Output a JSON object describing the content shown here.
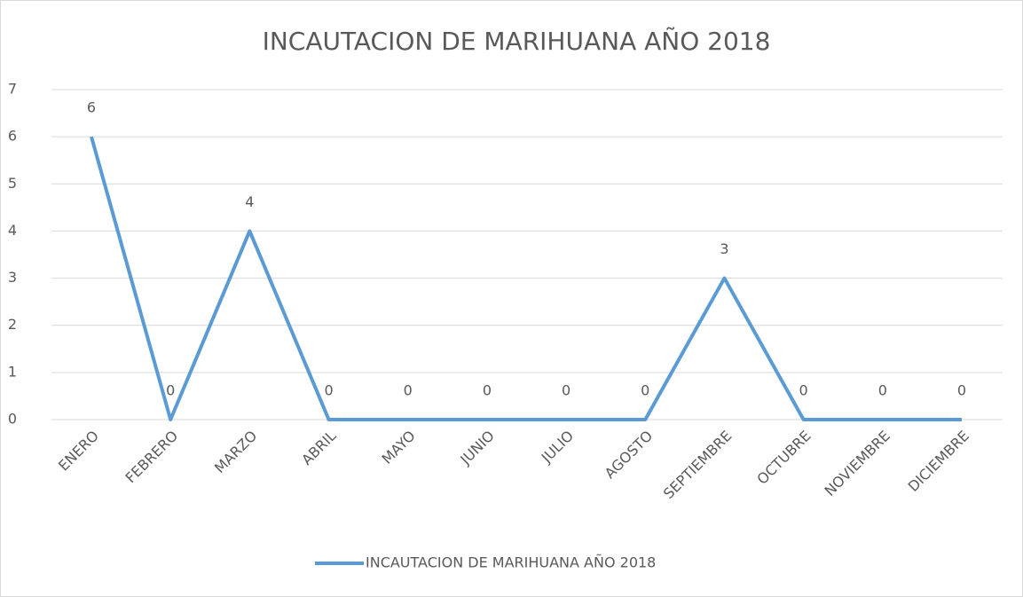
{
  "chart_data": {
    "type": "line",
    "title": "INCAUTACION DE MARIHUANA AÑO 2018",
    "categories": [
      "ENERO",
      "FEBRERO",
      "MARZO",
      "ABRIL",
      "MAYO",
      "JUNIO",
      "JULIO",
      "AGOSTO",
      "SEPTIEMBRE",
      "OCTUBRE",
      "NOVIEMBRE",
      "DICIEMBRE"
    ],
    "series": [
      {
        "name": "INCAUTACION DE MARIHUANA AÑO 2018",
        "color": "#5b9bd5",
        "values": [
          6,
          0,
          4,
          0,
          0,
          0,
          0,
          0,
          3,
          0,
          0,
          0
        ]
      }
    ],
    "ylim": [
      0,
      7
    ],
    "yticks": [
      0,
      1,
      2,
      3,
      4,
      5,
      6,
      7
    ],
    "grid": true,
    "legend": "bottom"
  }
}
